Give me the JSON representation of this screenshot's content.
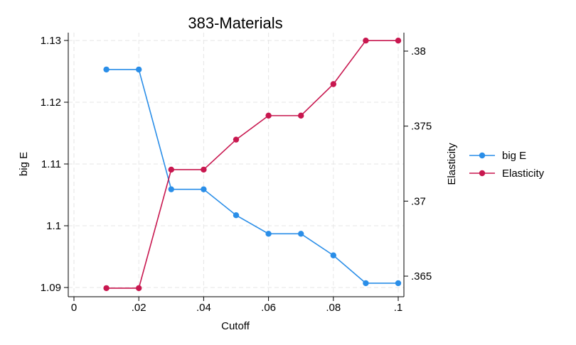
{
  "chart_data": {
    "type": "line",
    "title": "383-Materials",
    "xlabel": "Cutoff",
    "ylabel_left": "big E",
    "ylabel_right": "Elasticity",
    "x": [
      0.01,
      0.02,
      0.03,
      0.04,
      0.05,
      0.06,
      0.07,
      0.08,
      0.09,
      0.1
    ],
    "x_ticks": [
      0,
      0.02,
      0.04,
      0.06,
      0.08,
      0.1
    ],
    "x_tick_labels": [
      "0",
      ".02",
      ".04",
      ".06",
      ".08",
      ".1"
    ],
    "xlim": [
      0,
      0.1
    ],
    "left_ticks": [
      1.09,
      1.1,
      1.11,
      1.12,
      1.13
    ],
    "left_tick_labels": [
      "1.09",
      "1.1",
      "1.11",
      "1.12",
      "1.13"
    ],
    "ylim_left": [
      1.09,
      1.13
    ],
    "right_ticks": [
      0.365,
      0.37,
      0.375,
      0.38
    ],
    "right_tick_labels": [
      ".365",
      ".37",
      ".375",
      ".38"
    ],
    "ylim_right": [
      0.365,
      0.38
    ],
    "grid": true,
    "legend_position": "right",
    "series": [
      {
        "name": "big E",
        "axis": "left",
        "color": "#2a8ee8",
        "values": [
          1.1253,
          1.1253,
          1.1059,
          1.1059,
          1.1017,
          1.0987,
          1.0987,
          1.0952,
          1.0907,
          1.0907
        ]
      },
      {
        "name": "Elasticity",
        "axis": "right",
        "color": "#c8174f",
        "values": [
          0.3642,
          0.3642,
          0.3721,
          0.3721,
          0.3741,
          0.3757,
          0.3757,
          0.3778,
          0.3807,
          0.3807
        ]
      }
    ]
  }
}
